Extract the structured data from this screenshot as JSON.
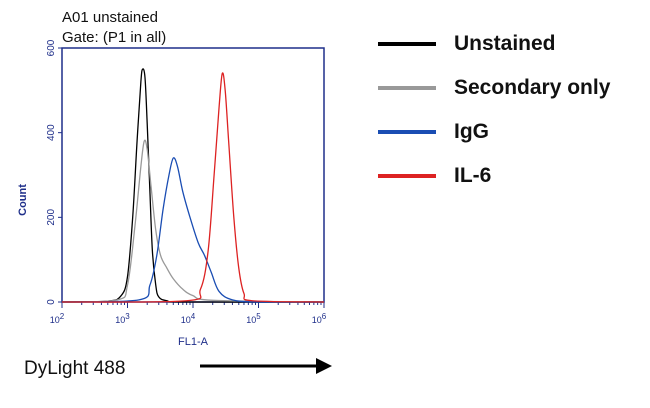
{
  "header": {
    "line1": "A01 unstained",
    "line2": "Gate: (P1 in all)"
  },
  "footer": {
    "label": "DyLight 488"
  },
  "chart_data": {
    "type": "line",
    "xlabel": "FL1-A",
    "ylabel": "Count",
    "xscale": "log",
    "xlim": [
      100,
      1000000
    ],
    "ylim": [
      0,
      600
    ],
    "xticks": [
      {
        "base": "10",
        "exp": "2"
      },
      {
        "base": "10",
        "exp": "3"
      },
      {
        "base": "10",
        "exp": "4"
      },
      {
        "base": "10",
        "exp": "5"
      },
      {
        "base": "10",
        "exp": "6"
      }
    ],
    "yticks": [
      "0",
      "200",
      "400",
      "600"
    ],
    "legend_position": "right",
    "series": [
      {
        "name": "Unstained",
        "color": "#000000",
        "points": [
          [
            100,
            0
          ],
          [
            500,
            2
          ],
          [
            800,
            15
          ],
          [
            1000,
            60
          ],
          [
            1200,
            200
          ],
          [
            1400,
            380
          ],
          [
            1600,
            520
          ],
          [
            1700,
            550
          ],
          [
            1850,
            530
          ],
          [
            2000,
            420
          ],
          [
            2200,
            260
          ],
          [
            2400,
            120
          ],
          [
            2700,
            40
          ],
          [
            3000,
            12
          ],
          [
            4000,
            3
          ],
          [
            8000,
            0
          ],
          [
            1000000,
            0
          ]
        ]
      },
      {
        "name": "Secondary only",
        "color": "#999999",
        "points": [
          [
            100,
            0
          ],
          [
            700,
            5
          ],
          [
            1000,
            40
          ],
          [
            1300,
            180
          ],
          [
            1600,
            320
          ],
          [
            1800,
            380
          ],
          [
            2000,
            360
          ],
          [
            2300,
            270
          ],
          [
            2700,
            170
          ],
          [
            3200,
            110
          ],
          [
            4000,
            80
          ],
          [
            5000,
            55
          ],
          [
            7000,
            30
          ],
          [
            10000,
            15
          ],
          [
            20000,
            4
          ],
          [
            1000000,
            0
          ]
        ]
      },
      {
        "name": "IgG",
        "color": "#1a4db3",
        "points": [
          [
            100,
            0
          ],
          [
            1500,
            5
          ],
          [
            2200,
            40
          ],
          [
            2800,
            110
          ],
          [
            3500,
            220
          ],
          [
            4300,
            300
          ],
          [
            5000,
            340
          ],
          [
            5800,
            320
          ],
          [
            7000,
            260
          ],
          [
            9000,
            200
          ],
          [
            12000,
            140
          ],
          [
            15000,
            110
          ],
          [
            19000,
            70
          ],
          [
            25000,
            25
          ],
          [
            40000,
            5
          ],
          [
            100000,
            0
          ],
          [
            1000000,
            0
          ]
        ]
      },
      {
        "name": "IL-6",
        "color": "#dd2222",
        "points": [
          [
            100,
            0
          ],
          [
            8000,
            3
          ],
          [
            13000,
            30
          ],
          [
            17000,
            120
          ],
          [
            21000,
            300
          ],
          [
            25000,
            460
          ],
          [
            28000,
            540
          ],
          [
            31000,
            500
          ],
          [
            35000,
            380
          ],
          [
            42000,
            200
          ],
          [
            50000,
            80
          ],
          [
            60000,
            20
          ],
          [
            80000,
            3
          ],
          [
            1000000,
            0
          ]
        ]
      }
    ]
  }
}
